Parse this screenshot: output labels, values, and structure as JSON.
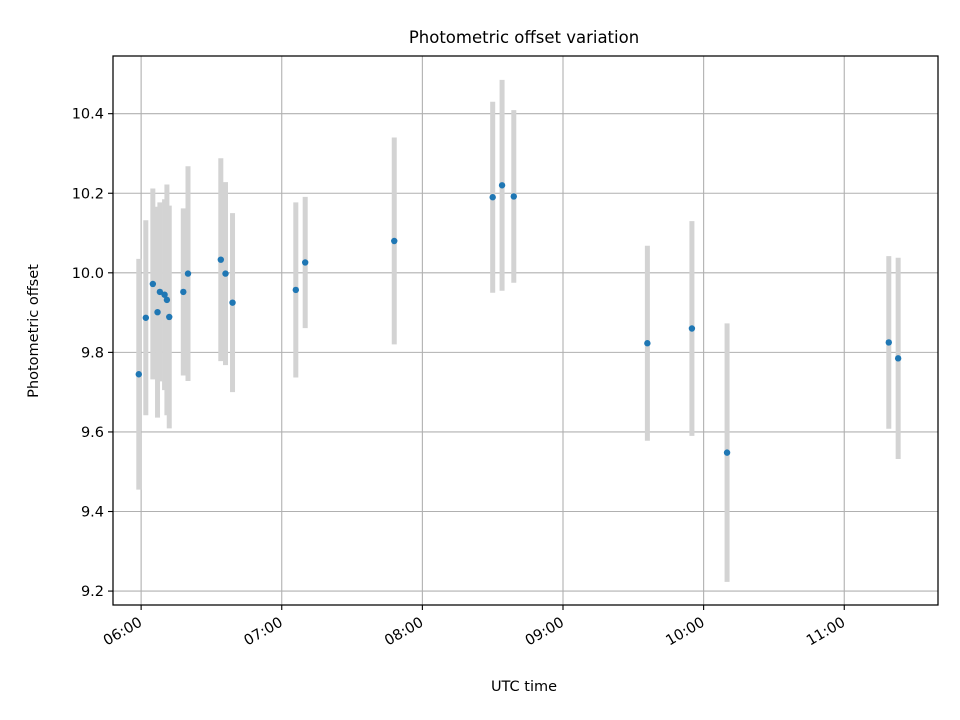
{
  "chart_data": {
    "type": "scatter",
    "title": "Photometric offset variation",
    "xlabel": "UTC time",
    "ylabel": "Photometric offset",
    "x_unit": "UTC time (HH:MM)",
    "xlim": [
      "05:48",
      "11:40"
    ],
    "ylim": [
      9.165,
      10.545
    ],
    "xticks": [
      "06:00",
      "07:00",
      "08:00",
      "09:00",
      "10:00",
      "11:00"
    ],
    "yticks": [
      9.2,
      9.4,
      9.6,
      9.8,
      10.0,
      10.2,
      10.4
    ],
    "grid": true,
    "legend": "none",
    "colors": {
      "points": "#1f77b4",
      "errorbars": "#d3d3d3",
      "grid": "#b0b0b0"
    },
    "series": [
      {
        "points": [
          {
            "x": "05:59",
            "y": 9.745,
            "err": 0.29
          },
          {
            "x": "06:02",
            "y": 9.887,
            "err": 0.245
          },
          {
            "x": "06:05",
            "y": 9.972,
            "err": 0.24
          },
          {
            "x": "06:07",
            "y": 9.901,
            "err": 0.265
          },
          {
            "x": "06:08",
            "y": 9.952,
            "err": 0.225
          },
          {
            "x": "06:10",
            "y": 9.945,
            "err": 0.24
          },
          {
            "x": "06:11",
            "y": 9.932,
            "err": 0.29
          },
          {
            "x": "06:12",
            "y": 9.889,
            "err": 0.28
          },
          {
            "x": "06:18",
            "y": 9.952,
            "err": 0.21
          },
          {
            "x": "06:20",
            "y": 9.998,
            "err": 0.27
          },
          {
            "x": "06:34",
            "y": 10.033,
            "err": 0.255
          },
          {
            "x": "06:36",
            "y": 9.998,
            "err": 0.23
          },
          {
            "x": "06:39",
            "y": 9.925,
            "err": 0.225
          },
          {
            "x": "07:06",
            "y": 9.957,
            "err": 0.22
          },
          {
            "x": "07:10",
            "y": 10.026,
            "err": 0.165
          },
          {
            "x": "07:48",
            "y": 10.08,
            "err": 0.26
          },
          {
            "x": "08:30",
            "y": 10.19,
            "err": 0.24
          },
          {
            "x": "08:34",
            "y": 10.22,
            "err": 0.265
          },
          {
            "x": "08:39",
            "y": 10.192,
            "err": 0.217
          },
          {
            "x": "09:36",
            "y": 9.823,
            "err": 0.245
          },
          {
            "x": "09:55",
            "y": 9.86,
            "err": 0.27
          },
          {
            "x": "10:10",
            "y": 9.548,
            "err": 0.325
          },
          {
            "x": "11:19",
            "y": 9.825,
            "err": 0.217
          },
          {
            "x": "11:23",
            "y": 9.785,
            "err": 0.253
          }
        ]
      }
    ]
  }
}
